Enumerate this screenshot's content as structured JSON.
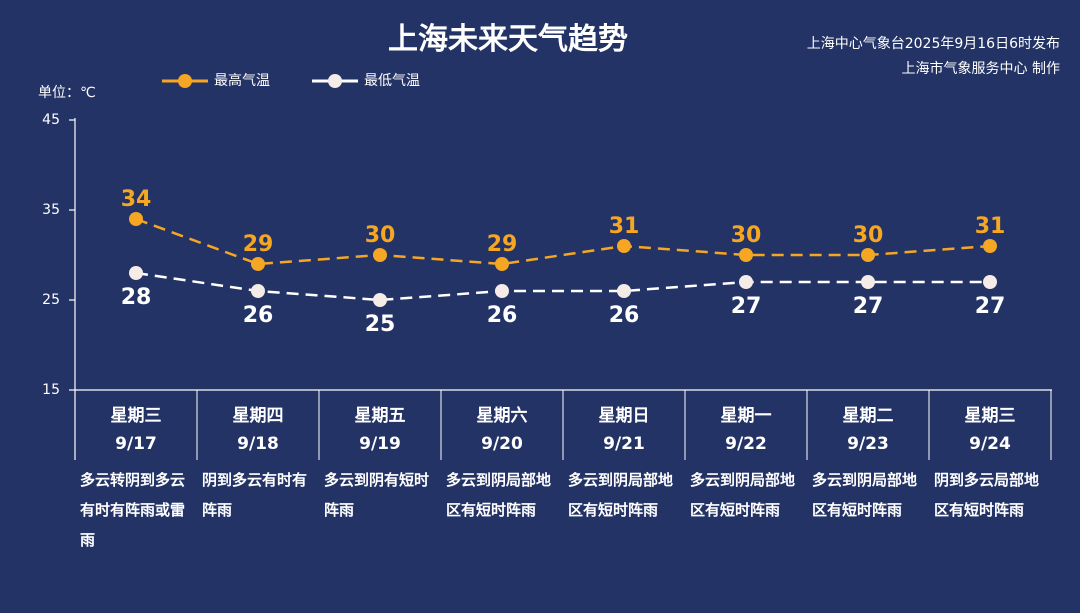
{
  "header": {
    "title": "上海未来天气趋势",
    "publisher_line1": "上海中心气象台2025年9月16日6时发布",
    "publisher_line2": "上海市气象服务中心 制作"
  },
  "unit_label": "单位：℃",
  "legend": {
    "high": "最高气温",
    "low": "最低气温"
  },
  "colors": {
    "background": "#233366",
    "high": "#f5a623",
    "low": "#ffffff",
    "low_marker": "#f5ece8"
  },
  "chart_data": {
    "type": "line",
    "title": "上海未来天气趋势",
    "ylabel": "单位：℃",
    "ylim": [
      15,
      45
    ],
    "yticks": [
      "45",
      "35",
      "25",
      "15"
    ],
    "grid": false,
    "legend_position": "top-left",
    "categories": [
      "9/17",
      "9/18",
      "9/19",
      "9/20",
      "9/21",
      "9/22",
      "9/23",
      "9/24"
    ],
    "series": [
      {
        "name": "最高气温",
        "values": [
          34,
          29,
          30,
          29,
          31,
          30,
          30,
          31
        ]
      },
      {
        "name": "最低气温",
        "values": [
          28,
          26,
          25,
          26,
          26,
          27,
          27,
          27
        ]
      }
    ]
  },
  "days": [
    {
      "weekday": "星期三",
      "date": "9/17",
      "weather": "多云转阴到多云有时有阵雨或雷雨"
    },
    {
      "weekday": "星期四",
      "date": "9/18",
      "weather": "阴到多云有时有阵雨"
    },
    {
      "weekday": "星期五",
      "date": "9/19",
      "weather": "多云到阴有短时阵雨"
    },
    {
      "weekday": "星期六",
      "date": "9/20",
      "weather": "多云到阴局部地区有短时阵雨"
    },
    {
      "weekday": "星期日",
      "date": "9/21",
      "weather": "多云到阴局部地区有短时阵雨"
    },
    {
      "weekday": "星期一",
      "date": "9/22",
      "weather": "多云到阴局部地区有短时阵雨"
    },
    {
      "weekday": "星期二",
      "date": "9/23",
      "weather": "多云到阴局部地区有短时阵雨"
    },
    {
      "weekday": "星期三",
      "date": "9/24",
      "weather": "阴到多云局部地区有短时阵雨"
    }
  ]
}
